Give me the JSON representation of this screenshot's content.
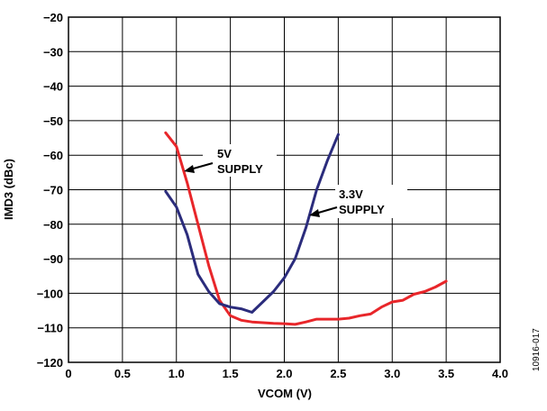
{
  "chart_data": {
    "type": "line",
    "xlabel": "VCOM (V)",
    "ylabel": "IMD3 (dBc)",
    "xlim": [
      0,
      4.0
    ],
    "ylim": [
      -120,
      -20
    ],
    "grid": true,
    "x_ticks": [
      "0",
      "0.5",
      "1.0",
      "1.5",
      "2.0",
      "2.5",
      "3.0",
      "3.5",
      "4.0"
    ],
    "y_ticks": [
      "−20",
      "−30",
      "−40",
      "−50",
      "−60",
      "−70",
      "−80",
      "−90",
      "−100",
      "−110",
      "−120"
    ],
    "annotations": [
      {
        "line1": "5V",
        "line2": "SUPPLY"
      },
      {
        "line1": "3.3V",
        "line2": "SUPPLY"
      }
    ],
    "series": [
      {
        "color": "#e8262a",
        "x": [
          0.9,
          1.0,
          1.1,
          1.2,
          1.3,
          1.4,
          1.5,
          1.6,
          1.7,
          1.8,
          1.9,
          2.0,
          2.1,
          2.2,
          2.3,
          2.4,
          2.5,
          2.6,
          2.7,
          2.8,
          2.9,
          3.0,
          3.1,
          3.2,
          3.3,
          3.4,
          3.5
        ],
        "y": [
          -53.5,
          -57.5,
          -68,
          -80,
          -92,
          -102,
          -106.5,
          -107.8,
          -108.3,
          -108.5,
          -108.7,
          -108.8,
          -109,
          -108.3,
          -107.5,
          -107.5,
          -107.5,
          -107.2,
          -106.5,
          -106,
          -104,
          -102.5,
          -102,
          -100.3,
          -99.5,
          -98.2,
          -96.5
        ]
      },
      {
        "color": "#2b2c7c",
        "x": [
          0.9,
          1.0,
          1.1,
          1.2,
          1.3,
          1.4,
          1.5,
          1.6,
          1.7,
          1.8,
          1.9,
          2.0,
          2.1,
          2.2,
          2.3,
          2.4,
          2.5
        ],
        "y": [
          -70.5,
          -75,
          -83,
          -94.5,
          -99.5,
          -103,
          -104,
          -104.5,
          -105.5,
          -102.5,
          -99.5,
          -95.5,
          -90,
          -81,
          -70,
          -61.5,
          -54
        ]
      }
    ]
  },
  "figure_id": "10916-017"
}
